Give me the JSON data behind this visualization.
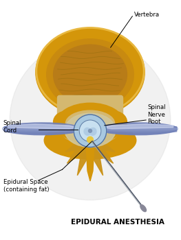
{
  "title": "EPIDURAL ANESTHESIA",
  "labels": {
    "vertebra": "Vertebra",
    "spinal_cord": "Spinal\nCord",
    "spinal_nerve_root": "Spinal\nNerve\nRoot",
    "epidural_space": "Epidural Space\n(containing fat)"
  },
  "bg_color": "#ffffff",
  "title_fontsize": 7.5,
  "label_fontsize": 6.2,
  "vertebra_outer": "#D4960A",
  "vertebra_rim": "#E8B840",
  "vertebra_inner": "#C88A10",
  "vertebra_center": "#B87C18",
  "canal_color": "#D4B870",
  "process_color": "#CA9218",
  "spinal_band_color1": "#7080B8",
  "spinal_band_color2": "#A8B8D8",
  "spinal_band_hi": "#D0D8F0",
  "thecal_outer": "#A8C8E0",
  "thecal_inner": "#C8E0F0",
  "cord_color": "#B0CCE4",
  "cord_dark": "#8098B8",
  "needle_dark": "#505868",
  "needle_light": "#A0A8B0",
  "fat_yellow": "#E8C840",
  "shadow_color": "#D8D8D8"
}
